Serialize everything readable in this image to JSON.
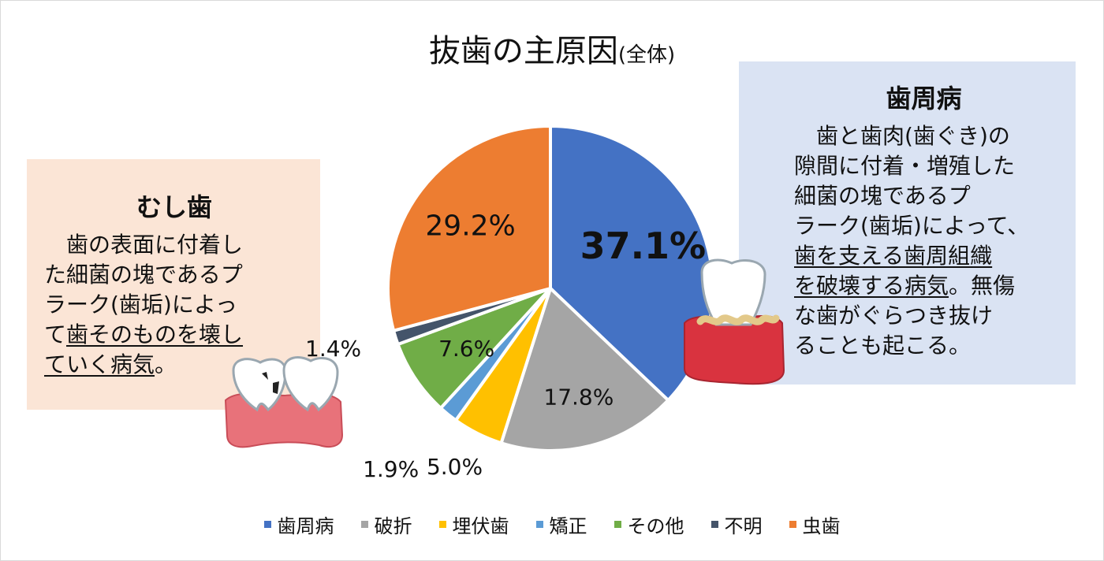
{
  "chart_data": {
    "type": "pie",
    "title": "抜歯の主原因",
    "subtitle": "(全体)",
    "legend_position": "bottom",
    "series": [
      {
        "name": "歯周病",
        "value": 37.1,
        "label": "37.1%",
        "color": "#4472c4"
      },
      {
        "name": "破折",
        "value": 17.8,
        "label": "17.8%",
        "color": "#a5a5a5"
      },
      {
        "name": "埋伏歯",
        "value": 5.0,
        "label": "5.0%",
        "color": "#ffc000"
      },
      {
        "name": "矯正",
        "value": 1.9,
        "label": "1.9%",
        "color": "#5b9bd5"
      },
      {
        "name": "その他",
        "value": 7.6,
        "label": "7.6%",
        "color": "#70ad47"
      },
      {
        "name": "不明",
        "value": 1.4,
        "label": "1.4%",
        "color": "#44546a"
      },
      {
        "name": "虫歯",
        "value": 29.2,
        "label": "29.2%",
        "color": "#ed7d31"
      }
    ]
  },
  "left_box": {
    "heading": "むし歯",
    "line1": "歯の表面に付着し",
    "line2": "た細菌の塊であるプ",
    "line3": "ラーク(歯垢)によっ",
    "line4_pre": "て",
    "line4_u": "歯そのものを壊し",
    "line5_u": "ていく病気",
    "line5_post": "。"
  },
  "right_box": {
    "heading": "歯周病",
    "line1": "歯と歯肉(歯ぐき)の",
    "line2": "隙間に付着・増殖した",
    "line3": "細菌の塊であるプ",
    "line4": "ラーク(歯垢)によって、",
    "line5_u": "歯を支える歯周組織",
    "line6_u": "を破壊する病気",
    "line6_post": "。無傷",
    "line7": "な歯がぐらつき抜け",
    "line8": "ることも起こる。"
  },
  "icons": {
    "left": "cavity-teeth-icon",
    "right": "periodontal-tooth-icon"
  }
}
